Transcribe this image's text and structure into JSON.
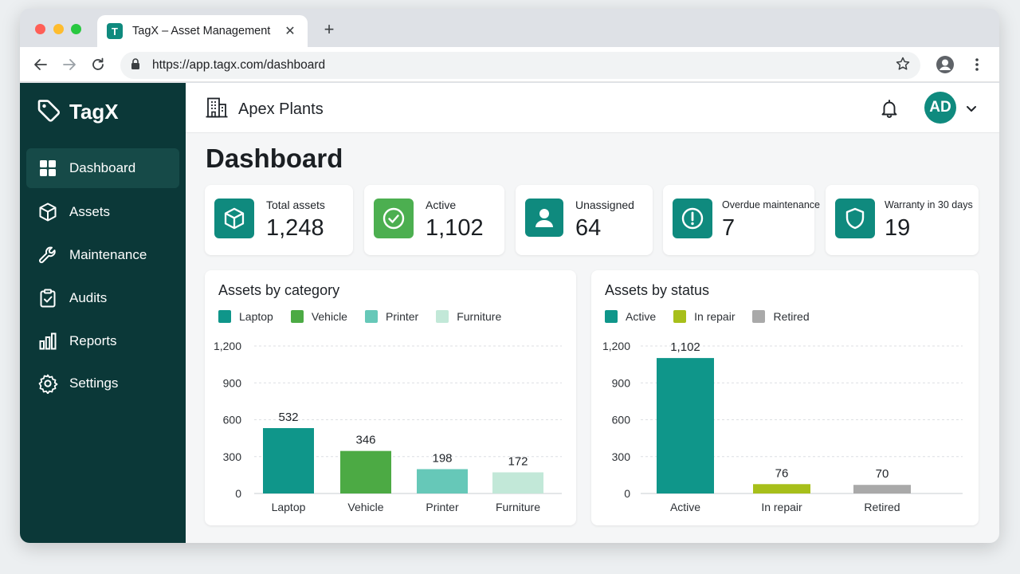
{
  "browser": {
    "tab_title": "TagX – Asset Management",
    "tab_favicon": "T",
    "url": "https://app.tagx.com/dashboard"
  },
  "brand": {
    "name": "TagX"
  },
  "sidebar": {
    "items": [
      {
        "label": "Dashboard",
        "icon": "grid-icon",
        "active": true
      },
      {
        "label": "Assets",
        "icon": "cube-icon"
      },
      {
        "label": "Maintenance",
        "icon": "wrench-icon"
      },
      {
        "label": "Audits",
        "icon": "clipboard-check-icon"
      },
      {
        "label": "Reports",
        "icon": "bar-chart-icon"
      },
      {
        "label": "Settings",
        "icon": "gear-icon"
      }
    ]
  },
  "header": {
    "org_name": "Apex Plants",
    "avatar_initials": "AD"
  },
  "page": {
    "title": "Dashboard"
  },
  "stats": [
    {
      "label": "Total assets",
      "value": "1,248",
      "icon": "cube-icon",
      "color": "#0f8a7e"
    },
    {
      "label": "Active",
      "value": "1,102",
      "icon": "check-circle-icon",
      "color": "#4caf50"
    },
    {
      "label": "Unassigned",
      "value": "64",
      "icon": "user-icon",
      "color": "#0f8a7e"
    },
    {
      "label": "Overdue maintenance",
      "value": "7",
      "icon": "alert-circle-icon",
      "color": "#0f8a7e"
    },
    {
      "label": "Warranty in 30 days",
      "value": "19",
      "icon": "shield-icon",
      "color": "#0f8a7e"
    }
  ],
  "chart_data": [
    {
      "type": "bar",
      "title": "Assets by category",
      "categories": [
        "Laptop",
        "Vehicle",
        "Printer",
        "Furniture"
      ],
      "values": [
        532,
        346,
        198,
        172
      ],
      "value_labels": [
        "532",
        "346",
        "198",
        "172"
      ],
      "colors": [
        "#0f968a",
        "#4caa44",
        "#66c8b8",
        "#c2e8d8"
      ],
      "legend": [
        "Laptop",
        "Vehicle",
        "Printer",
        "Furniture"
      ],
      "legend_position": "top-left",
      "yticks": [
        0,
        300,
        600,
        900,
        1200
      ],
      "ytick_labels": [
        "0",
        "300",
        "600",
        "900",
        "1,200"
      ],
      "ylim": [
        0,
        1200
      ],
      "grid": true
    },
    {
      "type": "bar",
      "title": "Assets by status",
      "categories": [
        "Active",
        "In repair",
        "Retired"
      ],
      "values": [
        1102,
        76,
        70
      ],
      "value_labels": [
        "1,102",
        "76",
        "70"
      ],
      "colors": [
        "#0f968a",
        "#a7bf1a",
        "#a9a9a9"
      ],
      "legend": [
        "Active",
        "In repair",
        "Retired"
      ],
      "legend_position": "top-left",
      "yticks": [
        0,
        300,
        600,
        900,
        1200
      ],
      "ytick_labels": [
        "0",
        "300",
        "600",
        "900",
        "1,200"
      ],
      "ylim": [
        0,
        1200
      ],
      "grid": true
    }
  ]
}
